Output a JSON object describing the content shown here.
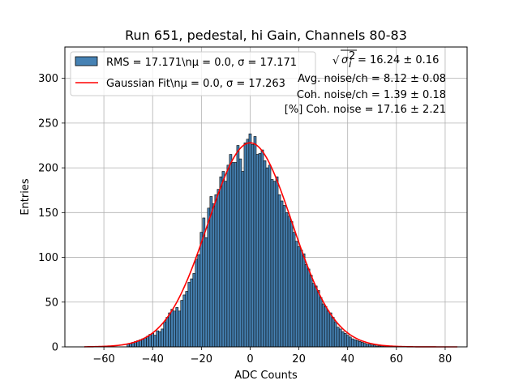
{
  "chart_data": {
    "type": "bar",
    "title": "Run 651, pedestal, hi Gain, Channels 80-83",
    "xlabel": "ADC Counts",
    "ylabel": "Entries",
    "xlim": [
      -76,
      89
    ],
    "ylim": [
      0,
      335
    ],
    "xticks": [
      -60,
      -40,
      -20,
      0,
      20,
      40,
      60,
      80
    ],
    "yticks": [
      0,
      50,
      100,
      150,
      200,
      250,
      300
    ],
    "grid": true,
    "legend_position": "upper-left",
    "colors": {
      "bars": "#4682b4",
      "fit": "#ff0000",
      "grid": "#b0b0b0"
    },
    "histogram": {
      "name": "RMS = 17.171\\nμ = 0.0, σ = 17.171",
      "bin_width": 1,
      "x": [
        -50,
        -49,
        -48,
        -47,
        -46,
        -45,
        -44,
        -43,
        -42,
        -41,
        -40,
        -39,
        -38,
        -37,
        -36,
        -35,
        -34,
        -33,
        -32,
        -31,
        -30,
        -29,
        -28,
        -27,
        -26,
        -25,
        -24,
        -23,
        -22,
        -21,
        -20,
        -19,
        -18,
        -17,
        -16,
        -15,
        -14,
        -13,
        -12,
        -11,
        -10,
        -9,
        -8,
        -7,
        -6,
        -5,
        -4,
        -3,
        -2,
        -1,
        0,
        1,
        2,
        3,
        4,
        5,
        6,
        7,
        8,
        9,
        10,
        11,
        12,
        13,
        14,
        15,
        16,
        17,
        18,
        19,
        20,
        21,
        22,
        23,
        24,
        25,
        26,
        27,
        28,
        29,
        30,
        31,
        32,
        33,
        34,
        35,
        36,
        37,
        38,
        39,
        40,
        41,
        42,
        43,
        44,
        45,
        46,
        47,
        48,
        49,
        50,
        51,
        52,
        53,
        54,
        55,
        56,
        57,
        58
      ],
      "values": [
        3,
        4,
        5,
        6,
        7,
        8,
        9,
        10,
        12,
        14,
        15,
        13,
        18,
        17,
        20,
        28,
        33,
        38,
        42,
        40,
        44,
        40,
        52,
        58,
        62,
        72,
        76,
        82,
        98,
        103,
        128,
        144,
        122,
        155,
        168,
        160,
        170,
        176,
        190,
        196,
        185,
        203,
        215,
        206,
        206,
        225,
        210,
        196,
        228,
        232,
        238,
        226,
        235,
        215,
        216,
        220,
        208,
        200,
        203,
        187,
        185,
        190,
        170,
        163,
        158,
        150,
        146,
        140,
        128,
        118,
        112,
        108,
        104,
        92,
        87,
        80,
        71,
        68,
        63,
        55,
        48,
        45,
        40,
        38,
        33,
        28,
        22,
        20,
        17,
        15,
        13,
        11,
        9,
        8,
        7,
        6,
        5,
        4,
        3,
        3,
        2,
        2,
        1,
        1,
        1,
        1,
        1,
        1,
        1
      ]
    },
    "fit": {
      "name": "Gaussian Fit\\nμ = 0.0, σ = 17.263",
      "mu": 0.0,
      "sigma": 17.263,
      "amplitude": 228,
      "x_range": [
        -68,
        85
      ]
    },
    "annotations": [
      {
        "sqrt_symbol": "√",
        "radicand_base": "σ",
        "radicand_sub": "i",
        "radicand_sup": "2",
        "value": " = 16.24 ± 0.16"
      },
      {
        "text": "Avg. noise/ch = 8.12 ± 0.08"
      },
      {
        "text": "Coh. noise/ch = 1.39 ± 0.18"
      },
      {
        "text": "[%] Coh. noise = 17.16 ± 2.21"
      }
    ]
  }
}
